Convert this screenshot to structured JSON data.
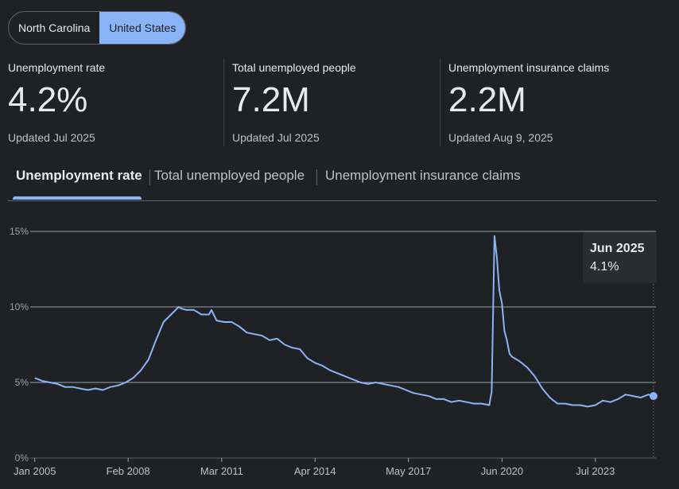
{
  "region_toggle": {
    "options": [
      "North Carolina",
      "United States"
    ],
    "selected": "United States"
  },
  "stats": [
    {
      "label": "Unemployment rate",
      "value": "4.2%",
      "updated": "Updated Jul 2025"
    },
    {
      "label": "Total unemployed people",
      "value": "7.2M",
      "updated": "Updated Jul 2025"
    },
    {
      "label": "Unemployment insurance claims",
      "value": "2.2M",
      "updated": "Updated Aug 9, 2025"
    }
  ],
  "tabs": [
    {
      "label": "Unemployment rate",
      "active": true
    },
    {
      "label": "Total unemployed people",
      "active": false
    },
    {
      "label": "Unemployment insurance claims",
      "active": false
    }
  ],
  "tooltip": {
    "date": "Jun 2025",
    "value": "4.1%"
  },
  "colors": {
    "accent": "#8ab4f8",
    "background": "#202124",
    "grid": "#9aa0a6"
  },
  "chart_data": {
    "type": "line",
    "ylabel": "",
    "xlabel": "",
    "ylim": [
      0,
      15
    ],
    "xlim": [
      2004.85,
      2025.5
    ],
    "yticks": [
      0,
      5,
      10,
      15
    ],
    "ytick_labels": [
      "0%",
      "5%",
      "10%",
      "15%"
    ],
    "xticks": [
      2005.0,
      2008.08,
      2011.17,
      2014.25,
      2017.33,
      2020.42,
      2023.5
    ],
    "xtick_labels": [
      "Jan 2005",
      "Feb 2008",
      "Mar 2011",
      "Apr 2014",
      "May 2017",
      "Jun 2020",
      "Jul 2023"
    ],
    "grid": true,
    "series": [
      {
        "x": [
          2005.0,
          2005.25,
          2005.5,
          2005.75,
          2006.0,
          2006.25,
          2006.5,
          2006.75,
          2007.0,
          2007.25,
          2007.5,
          2007.75,
          2008.0,
          2008.25,
          2008.5,
          2008.75,
          2009.0,
          2009.25,
          2009.5,
          2009.75,
          2009.83,
          2010.0,
          2010.25,
          2010.5,
          2010.75,
          2010.83,
          2011.0,
          2011.25,
          2011.5,
          2011.75,
          2012.0,
          2012.25,
          2012.5,
          2012.75,
          2013.0,
          2013.25,
          2013.5,
          2013.75,
          2014.0,
          2014.25,
          2014.5,
          2014.75,
          2015.0,
          2015.25,
          2015.5,
          2015.75,
          2016.0,
          2016.25,
          2016.5,
          2016.75,
          2017.0,
          2017.25,
          2017.5,
          2017.75,
          2018.0,
          2018.25,
          2018.5,
          2018.75,
          2019.0,
          2019.25,
          2019.5,
          2019.75,
          2020.0,
          2020.08,
          2020.17,
          2020.25,
          2020.33,
          2020.42,
          2020.5,
          2020.58,
          2020.67,
          2020.75,
          2021.0,
          2021.25,
          2021.5,
          2021.75,
          2022.0,
          2022.25,
          2022.5,
          2022.75,
          2023.0,
          2023.25,
          2023.5,
          2023.75,
          2024.0,
          2024.25,
          2024.5,
          2024.75,
          2025.0,
          2025.25,
          2025.42
        ],
        "values": [
          5.3,
          5.1,
          5.0,
          4.9,
          4.7,
          4.7,
          4.6,
          4.5,
          4.6,
          4.5,
          4.7,
          4.8,
          5.0,
          5.3,
          5.8,
          6.5,
          7.8,
          9.0,
          9.5,
          10.0,
          9.9,
          9.8,
          9.8,
          9.5,
          9.5,
          9.8,
          9.1,
          9.0,
          9.0,
          8.7,
          8.3,
          8.2,
          8.1,
          7.8,
          7.9,
          7.5,
          7.3,
          7.2,
          6.6,
          6.3,
          6.1,
          5.8,
          5.6,
          5.4,
          5.2,
          5.0,
          4.9,
          5.0,
          4.9,
          4.8,
          4.7,
          4.5,
          4.3,
          4.2,
          4.1,
          3.9,
          3.9,
          3.7,
          3.8,
          3.7,
          3.6,
          3.6,
          3.5,
          4.4,
          14.7,
          13.3,
          11.1,
          10.2,
          8.4,
          7.8,
          6.9,
          6.7,
          6.4,
          6.0,
          5.4,
          4.6,
          4.0,
          3.6,
          3.6,
          3.5,
          3.5,
          3.4,
          3.5,
          3.8,
          3.7,
          3.9,
          4.2,
          4.1,
          4.0,
          4.2,
          4.1
        ]
      }
    ]
  }
}
